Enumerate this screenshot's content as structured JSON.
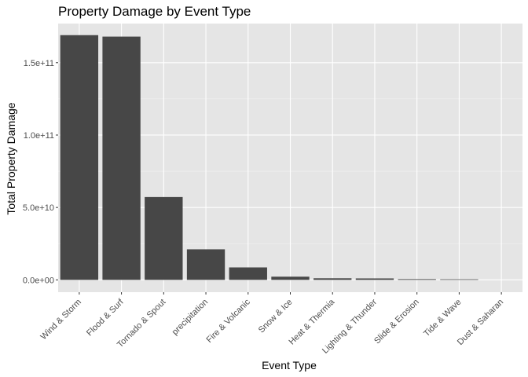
{
  "chart_data": {
    "type": "bar",
    "title": "Property Damage by Event Type",
    "xlabel": "Event Type",
    "ylabel": "Total Property Damage",
    "categories": [
      "Wind & Storm",
      "Flood & Surf",
      "Tornado & Spout",
      "precipitation",
      "Fire & Volcanic",
      "Snow & Ice",
      "Heat & Thermia",
      "Lighting & Thunder",
      "Slide & Erosion",
      "Tide & Wave",
      "Dust & Saharan"
    ],
    "values": [
      169000000000,
      168000000000,
      57200000000,
      21100000000,
      8600000000,
      2200000000,
      1100000000,
      1000000000,
      500000000,
      400000000,
      0
    ],
    "ylim": [
      -8500000000,
      177000000000
    ],
    "yticks": [
      0,
      50000000000,
      100000000000,
      150000000000
    ],
    "ytick_labels": [
      "0.0e+00",
      "5.0e+10",
      "1.0e+11",
      "1.5e+11"
    ],
    "grid": true,
    "colors": {
      "bar": "#474747",
      "panel": "#e5e5e5",
      "grid_major": "#ffffff",
      "grid_minor": "#f2f2f2"
    }
  }
}
